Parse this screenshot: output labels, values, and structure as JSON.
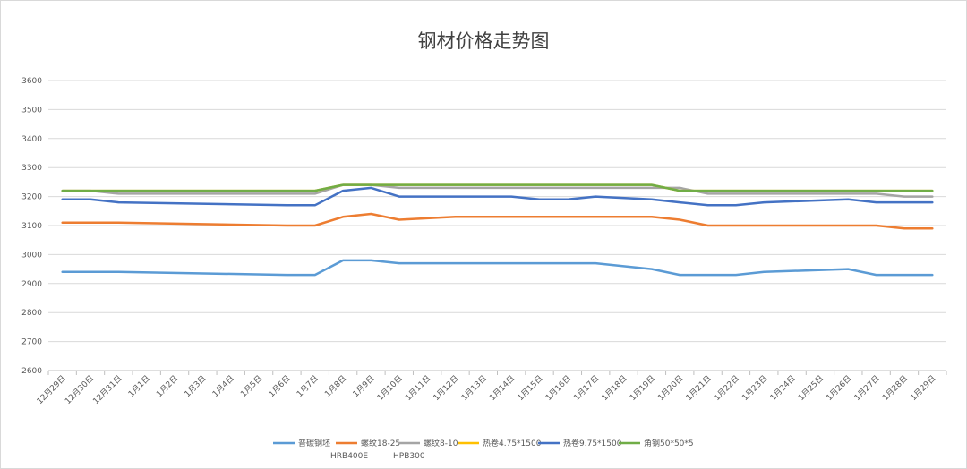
{
  "chart_data": {
    "type": "line",
    "title": "钢材价格走势图",
    "categories": [
      "12月29日",
      "12月30日",
      "12月31日",
      "1月1日",
      "1月2日",
      "1月3日",
      "1月4日",
      "1月5日",
      "1月6日",
      "1月7日",
      "1月8日",
      "1月9日",
      "1月10日",
      "1月11日",
      "1月12日",
      "1月13日",
      "1月14日",
      "1月15日",
      "1月16日",
      "1月17日",
      "1月18日",
      "1月19日",
      "1月20日",
      "1月21日",
      "1月22日",
      "1月23日",
      "1月24日",
      "1月25日",
      "1月26日",
      "1月27日",
      "1月28日",
      "1月29日"
    ],
    "ylim": [
      2600,
      3600
    ],
    "yticks": [
      2600,
      2700,
      2800,
      2900,
      3000,
      3100,
      3200,
      3300,
      3400,
      3500,
      3600
    ],
    "grid": true,
    "legend_position": "bottom",
    "series": [
      {
        "name": "普碳钢坯",
        "color": "#5b9bd5",
        "values": [
          2940,
          2940,
          2940,
          null,
          null,
          null,
          null,
          null,
          2930,
          2930,
          2980,
          2980,
          2970,
          2970,
          2970,
          2970,
          2970,
          2970,
          2970,
          2970,
          null,
          2950,
          2930,
          2930,
          2930,
          2940,
          null,
          null,
          2950,
          2930,
          2930,
          2930
        ]
      },
      {
        "name": "螺纹18-25 HRB400E",
        "color": "#ed7d31",
        "values": [
          3110,
          3110,
          3110,
          null,
          null,
          null,
          null,
          null,
          3100,
          3100,
          3130,
          3140,
          3120,
          null,
          3130,
          3130,
          3130,
          3130,
          3130,
          3130,
          3130,
          3130,
          3120,
          3100,
          3100,
          3100,
          3100,
          3100,
          3100,
          3100,
          3090,
          3090
        ]
      },
      {
        "name": "螺纹8-10 HPB300",
        "color": "#a5a5a5",
        "values": [
          3220,
          3220,
          3210,
          3210,
          3210,
          3210,
          3210,
          3210,
          3210,
          3210,
          3240,
          3240,
          3230,
          3230,
          3230,
          3230,
          3230,
          3230,
          3230,
          3230,
          3230,
          3230,
          3230,
          3210,
          3210,
          3210,
          3210,
          3210,
          3210,
          3210,
          3200,
          3200
        ]
      },
      {
        "name": "热卷4.75*1500",
        "color": "#ffc000",
        "values": [
          3220,
          3220,
          3220,
          3220,
          3220,
          3220,
          3220,
          3220,
          3220,
          3220,
          3240,
          3240,
          3240,
          3240,
          3240,
          3240,
          3240,
          3240,
          3240,
          3240,
          3240,
          3240,
          3220,
          3220,
          3220,
          3220,
          3220,
          3220,
          3220,
          3220,
          3220,
          3220
        ]
      },
      {
        "name": "热卷9.75*1500",
        "color": "#4472c4",
        "values": [
          3190,
          3190,
          3180,
          null,
          null,
          null,
          null,
          null,
          3170,
          3170,
          3220,
          3230,
          3200,
          3200,
          3200,
          3200,
          3200,
          3190,
          3190,
          3200,
          null,
          3190,
          3180,
          3170,
          3170,
          3180,
          null,
          null,
          3190,
          3180,
          3180,
          3180
        ]
      },
      {
        "name": "角钢50*50*5",
        "color": "#70ad47",
        "values": [
          3220,
          3220,
          3220,
          3220,
          3220,
          3220,
          3220,
          3220,
          3220,
          3220,
          3240,
          3240,
          3240,
          3240,
          3240,
          3240,
          3240,
          3240,
          3240,
          3240,
          3240,
          3240,
          3220,
          3220,
          3220,
          3220,
          3220,
          3220,
          3220,
          3220,
          3220,
          3220
        ]
      }
    ],
    "legend": [
      {
        "line1": "普碳钢坯",
        "line2": ""
      },
      {
        "line1": "螺纹18-25",
        "line2": "HRB400E"
      },
      {
        "line1": "螺纹8-10",
        "line2": "HPB300"
      },
      {
        "line1": "热卷4.75*1500",
        "line2": ""
      },
      {
        "line1": "热卷9.75*1500",
        "line2": ""
      },
      {
        "line1": "角钢50*50*5",
        "line2": ""
      }
    ]
  }
}
